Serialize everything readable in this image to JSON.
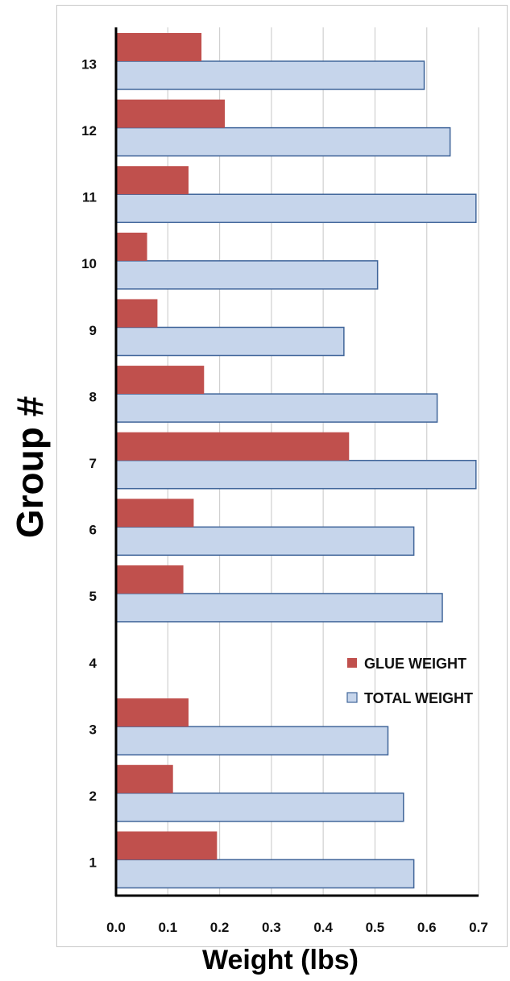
{
  "chart_data": {
    "type": "bar",
    "orientation": "horizontal",
    "categories": [
      "1",
      "2",
      "3",
      "4",
      "5",
      "6",
      "7",
      "8",
      "9",
      "10",
      "11",
      "12",
      "13"
    ],
    "series": [
      {
        "name": "GLUE WEIGHT",
        "color": "#c0504d",
        "values": [
          0.195,
          0.11,
          0.14,
          null,
          0.13,
          0.15,
          0.45,
          0.17,
          0.08,
          0.06,
          0.14,
          0.21,
          0.165
        ]
      },
      {
        "name": "TOTAL WEIGHT",
        "color": "#c6d5eb",
        "border": "#41669a",
        "values": [
          0.575,
          0.555,
          0.525,
          null,
          0.63,
          0.575,
          0.695,
          0.62,
          0.44,
          0.505,
          0.695,
          0.645,
          0.595
        ]
      }
    ],
    "xlabel": "Weight (lbs)",
    "ylabel": "Group #",
    "xlim": [
      0,
      0.7
    ],
    "xticks": [
      "0.0",
      "0.1",
      "0.2",
      "0.3",
      "0.4",
      "0.5",
      "0.6",
      "0.7"
    ],
    "grid": "vertical",
    "legend": "right-lower"
  }
}
